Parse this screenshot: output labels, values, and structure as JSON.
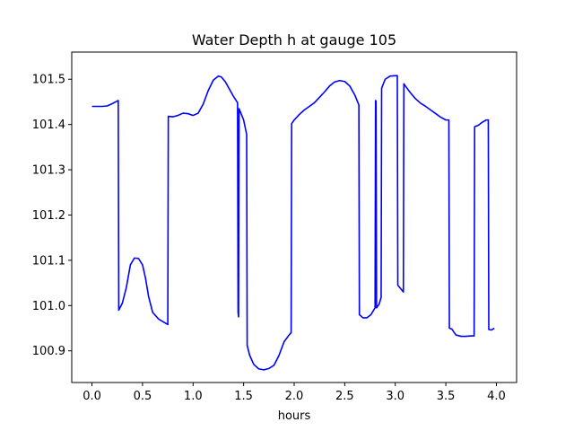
{
  "chart_data": {
    "type": "line",
    "title": "Water Depth h at gauge 105",
    "xlabel": "hours",
    "ylabel": "",
    "xlim": [
      -0.2,
      4.2
    ],
    "ylim": [
      100.83,
      101.56
    ],
    "xticks": [
      0.0,
      0.5,
      1.0,
      1.5,
      2.0,
      2.5,
      3.0,
      3.5,
      4.0
    ],
    "xtick_labels": [
      "0.0",
      "0.5",
      "1.0",
      "1.5",
      "2.0",
      "2.5",
      "3.0",
      "3.5",
      "4.0"
    ],
    "yticks": [
      100.9,
      101.0,
      101.1,
      101.2,
      101.3,
      101.4,
      101.5
    ],
    "ytick_labels": [
      "100.9",
      "101.0",
      "101.1",
      "101.2",
      "101.3",
      "101.4",
      "101.5"
    ],
    "grid": false,
    "legend": "none",
    "series": [
      {
        "color": "#0000ff",
        "x": [
          0.0,
          0.1,
          0.15,
          0.2,
          0.26,
          0.265,
          0.3,
          0.34,
          0.38,
          0.42,
          0.46,
          0.5,
          0.53,
          0.56,
          0.6,
          0.66,
          0.75,
          0.755,
          0.8,
          0.85,
          0.9,
          0.95,
          1.0,
          1.05,
          1.1,
          1.15,
          1.2,
          1.25,
          1.28,
          1.32,
          1.36,
          1.4,
          1.44,
          1.445,
          1.45,
          1.455,
          1.5,
          1.53,
          1.535,
          1.56,
          1.6,
          1.65,
          1.7,
          1.75,
          1.8,
          1.85,
          1.9,
          1.95,
          1.97,
          1.975,
          2.0,
          2.05,
          2.1,
          2.15,
          2.2,
          2.25,
          2.3,
          2.35,
          2.4,
          2.45,
          2.5,
          2.55,
          2.6,
          2.64,
          2.645,
          2.68,
          2.72,
          2.76,
          2.8,
          2.805,
          2.81,
          2.815,
          2.84,
          2.86,
          2.865,
          2.9,
          2.95,
          3.02,
          3.025,
          3.08,
          3.085,
          3.1,
          3.15,
          3.2,
          3.25,
          3.3,
          3.35,
          3.4,
          3.45,
          3.5,
          3.53,
          3.535,
          3.56,
          3.6,
          3.65,
          3.7,
          3.75,
          3.78,
          3.785,
          3.82,
          3.86,
          3.9,
          3.92,
          3.925,
          3.95,
          3.98
        ],
        "y": [
          101.44,
          101.44,
          101.441,
          101.446,
          101.453,
          100.99,
          101.005,
          101.04,
          101.09,
          101.105,
          101.104,
          101.09,
          101.06,
          101.02,
          100.985,
          100.97,
          100.958,
          101.418,
          101.417,
          101.42,
          101.425,
          101.424,
          101.42,
          101.425,
          101.445,
          101.475,
          101.498,
          101.507,
          101.505,
          101.494,
          101.478,
          101.462,
          101.448,
          100.985,
          100.975,
          101.435,
          101.41,
          101.378,
          100.912,
          100.89,
          100.87,
          100.86,
          100.858,
          100.861,
          100.868,
          100.89,
          100.92,
          100.935,
          100.94,
          101.402,
          101.41,
          101.422,
          101.432,
          101.44,
          101.448,
          101.46,
          101.472,
          101.485,
          101.494,
          101.497,
          101.495,
          101.485,
          101.465,
          101.443,
          100.98,
          100.973,
          100.973,
          100.98,
          100.995,
          101.453,
          101.451,
          100.995,
          101.003,
          101.018,
          101.48,
          101.5,
          101.507,
          101.508,
          101.045,
          101.03,
          101.49,
          101.485,
          101.47,
          101.457,
          101.447,
          101.44,
          101.432,
          101.424,
          101.416,
          101.41,
          101.41,
          100.95,
          100.948,
          100.935,
          100.932,
          100.932,
          100.933,
          100.933,
          101.395,
          101.398,
          101.405,
          101.41,
          101.41,
          100.947,
          100.946,
          100.95
        ]
      }
    ]
  }
}
